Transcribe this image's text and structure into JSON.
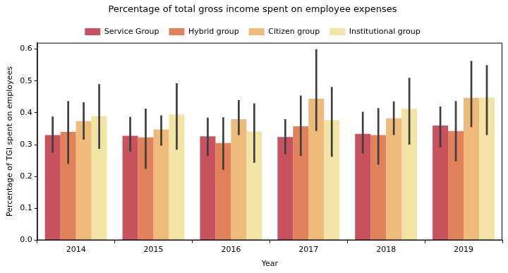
{
  "chart_data": {
    "type": "bar",
    "title": "Percentage of total gross income spent on employee expenses",
    "x_label": "Year",
    "y_label": "Percentage of TGI spent on employees",
    "categories": [
      "2014",
      "2015",
      "2016",
      "2017",
      "2018",
      "2019"
    ],
    "series": [
      {
        "name": "Service Group",
        "color": "#c8525e",
        "values": [
          0.33,
          0.328,
          0.326,
          0.324,
          0.334,
          0.36
        ],
        "error_low": [
          0.275,
          0.278,
          0.265,
          0.27,
          0.272,
          0.292
        ],
        "error_high": [
          0.388,
          0.387,
          0.385,
          0.38,
          0.403,
          0.42
        ]
      },
      {
        "name": "Hybrid group",
        "color": "#e2825a",
        "values": [
          0.34,
          0.323,
          0.305,
          0.358,
          0.33,
          0.343
        ],
        "error_low": [
          0.24,
          0.224,
          0.221,
          0.265,
          0.237,
          0.248
        ],
        "error_high": [
          0.437,
          0.413,
          0.386,
          0.454,
          0.415,
          0.437
        ]
      },
      {
        "name": "Citizen group",
        "color": "#efbb7b",
        "values": [
          0.374,
          0.348,
          0.38,
          0.444,
          0.383,
          0.447
        ],
        "error_low": [
          0.316,
          0.297,
          0.33,
          0.343,
          0.33,
          0.355
        ],
        "error_high": [
          0.433,
          0.392,
          0.44,
          0.6,
          0.436,
          0.563
        ]
      },
      {
        "name": "Institutional group",
        "color": "#f2e4a5",
        "values": [
          0.39,
          0.395,
          0.342,
          0.377,
          0.413,
          0.448
        ],
        "error_low": [
          0.287,
          0.284,
          0.243,
          0.262,
          0.3,
          0.33
        ],
        "error_high": [
          0.49,
          0.493,
          0.43,
          0.481,
          0.51,
          0.55
        ]
      }
    ],
    "ylim": [
      0,
      0.62
    ],
    "yticks": [
      {
        "value": 0,
        "label": "0.0"
      },
      0.1,
      0.2,
      0.3,
      0.4,
      0.5,
      0.6
    ],
    "grid": false,
    "legend": "top"
  }
}
